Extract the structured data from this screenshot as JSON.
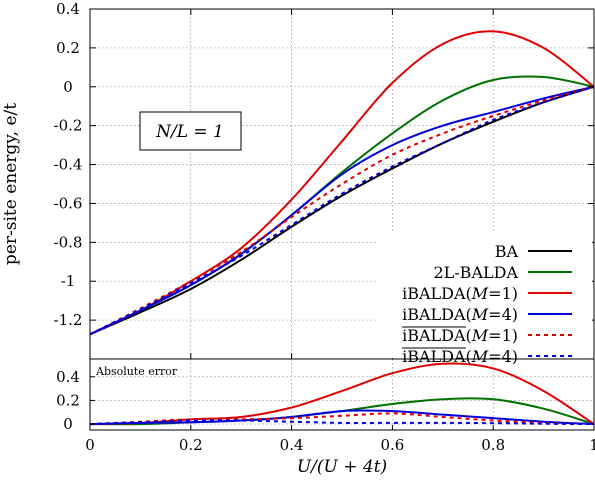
{
  "chart_data": [
    {
      "type": "line",
      "panel": "main",
      "xlabel": "U/(U + 4t)",
      "ylabel": "per-site energy, e/t",
      "annotation": "N/L = 1",
      "xlim": [
        0,
        1
      ],
      "ylim": [
        -1.4,
        0.4
      ],
      "xticks": [
        "0",
        "0.2",
        "0.4",
        "0.6",
        "0.8",
        "1"
      ],
      "yticks": [
        "0.4",
        "0.2",
        "0",
        "-0.2",
        "-0.4",
        "-0.6",
        "-0.8",
        "-1",
        "-1.2"
      ],
      "grid": true,
      "legend_position": "bottom-right",
      "x": [
        0,
        0.1,
        0.2,
        0.3,
        0.4,
        0.5,
        0.6,
        0.7,
        0.8,
        0.9,
        1.0
      ],
      "series": [
        {
          "name": "BA",
          "style": "solid",
          "color": "#000000",
          "values": [
            -1.273,
            -1.16,
            -1.04,
            -0.89,
            -0.72,
            -0.56,
            -0.42,
            -0.29,
            -0.18,
            -0.08,
            0.0
          ]
        },
        {
          "name": "2L-BALDA",
          "style": "solid",
          "color": "#007000",
          "values": [
            -1.273,
            -1.15,
            -1.02,
            -0.86,
            -0.66,
            -0.44,
            -0.24,
            -0.07,
            0.035,
            0.05,
            0.0
          ]
        },
        {
          "name": "iBALDA(M=1)",
          "style": "solid",
          "color": "#e00000",
          "values": [
            -1.273,
            -1.15,
            -1.0,
            -0.83,
            -0.58,
            -0.28,
            0.02,
            0.22,
            0.285,
            0.2,
            0.0
          ]
        },
        {
          "name": "iBALDA(M=4)",
          "style": "solid",
          "color": "#0000dd",
          "values": [
            -1.273,
            -1.15,
            -1.02,
            -0.86,
            -0.66,
            -0.45,
            -0.3,
            -0.2,
            -0.13,
            -0.06,
            0.0
          ]
        },
        {
          "name": "iBALDA(M=1)",
          "overlined": true,
          "style": "dashed",
          "color": "#e00000",
          "values": [
            -1.273,
            -1.14,
            -1.0,
            -0.85,
            -0.67,
            -0.5,
            -0.35,
            -0.24,
            -0.15,
            -0.07,
            0.0
          ]
        },
        {
          "name": "iBALDA(M=4)",
          "overlined": true,
          "style": "dashed",
          "color": "#0000dd",
          "values": [
            -1.273,
            -1.145,
            -1.01,
            -0.87,
            -0.71,
            -0.55,
            -0.41,
            -0.29,
            -0.17,
            -0.08,
            0.0
          ]
        }
      ]
    },
    {
      "type": "line",
      "panel": "inset",
      "title": "Absolute error",
      "xlim": [
        0,
        1
      ],
      "ylim": [
        -0.05,
        0.55
      ],
      "yticks": [
        "0.4",
        "0.2",
        "0"
      ],
      "x": [
        0,
        0.1,
        0.2,
        0.3,
        0.4,
        0.5,
        0.6,
        0.7,
        0.8,
        0.9,
        1.0
      ],
      "series": [
        {
          "name": "2L-BALDA",
          "style": "solid",
          "color": "#007000",
          "values": [
            0,
            0.0,
            0.015,
            0.03,
            0.06,
            0.11,
            0.17,
            0.21,
            0.21,
            0.13,
            0.0
          ]
        },
        {
          "name": "iBALDA(M=1)",
          "style": "solid",
          "color": "#e00000",
          "values": [
            0,
            0.01,
            0.04,
            0.06,
            0.14,
            0.28,
            0.43,
            0.51,
            0.47,
            0.28,
            0.0
          ]
        },
        {
          "name": "iBALDA(M=4)",
          "style": "solid",
          "color": "#0000dd",
          "values": [
            0,
            0.01,
            0.015,
            0.03,
            0.06,
            0.11,
            0.11,
            0.08,
            0.05,
            0.02,
            0.0
          ]
        },
        {
          "name": "iBALDA(M=1)",
          "overlined": true,
          "style": "dashed",
          "color": "#e00000",
          "values": [
            0,
            0.02,
            0.04,
            0.04,
            0.05,
            0.07,
            0.09,
            0.06,
            0.03,
            0.01,
            0.0
          ]
        },
        {
          "name": "iBALDA(M=4)",
          "overlined": true,
          "style": "dashed",
          "color": "#0000dd",
          "values": [
            0,
            0.015,
            0.03,
            0.03,
            0.02,
            0.01,
            0.01,
            0.01,
            0.008,
            0.003,
            0.0
          ]
        }
      ]
    }
  ]
}
